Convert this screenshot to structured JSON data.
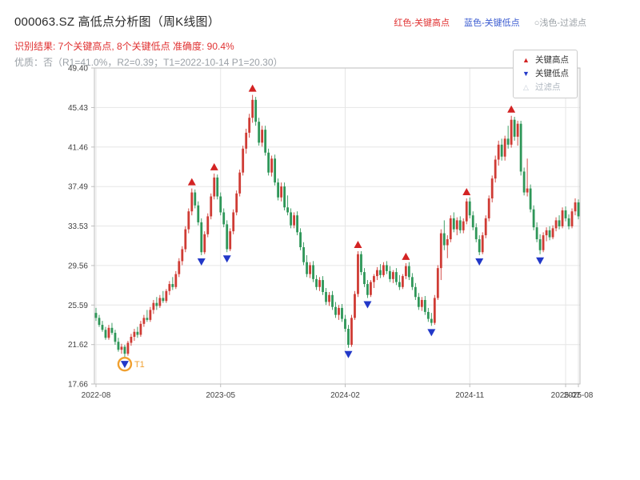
{
  "header": {
    "title": "000063.SZ 高低点分析图（周K线图）",
    "legend_top": {
      "high_label": "红色-关键高点",
      "low_label": "蓝色-关键低点",
      "filtered_label": "○浅色-过滤点"
    },
    "result_line": "识别结果: 7个关键高点, 8个关键低点  准确度: 90.4%",
    "quality_line": "优质：否（R1=41.0%，R2=0.39；T1=2022-10-14 P1=20.30）"
  },
  "legend_box": {
    "items": [
      {
        "label": "关键高点",
        "type": "key-high"
      },
      {
        "label": "关键低点",
        "type": "key-low"
      },
      {
        "label": "过滤点",
        "type": "filtered"
      }
    ]
  },
  "colors": {
    "up": "#cf3b34",
    "down": "#2e9658",
    "key_high": "#d32323",
    "key_low": "#2238c8",
    "filtered": "#c4ccd6",
    "t1": "#f0a030",
    "grid": "#e6e6e6",
    "frame": "#bdbdbd",
    "tick_text": "#444444"
  },
  "chart_data": {
    "type": "candlestick",
    "title": "000063.SZ 高低点分析图（周K线图）",
    "xlabel": "",
    "ylabel": "",
    "ylim": [
      17.66,
      49.4
    ],
    "grid": true,
    "y_ticks": [
      17.66,
      21.62,
      25.59,
      29.56,
      33.53,
      37.49,
      41.46,
      45.43,
      49.4
    ],
    "x_ticks": [
      {
        "index": 0,
        "label": "2022-08"
      },
      {
        "index": 39,
        "label": "2023-05"
      },
      {
        "index": 78,
        "label": "2024-02"
      },
      {
        "index": 117,
        "label": "2024-11"
      },
      {
        "index": 147,
        "label": "2025-07"
      },
      {
        "index": 151,
        "label": "2025-08"
      }
    ],
    "candles_format": [
      "open",
      "high",
      "low",
      "close"
    ],
    "candles": [
      [
        24.8,
        25.3,
        24.0,
        24.3
      ],
      [
        24.3,
        24.6,
        23.4,
        23.6
      ],
      [
        23.6,
        24.0,
        22.9,
        23.1
      ],
      [
        23.1,
        23.4,
        22.1,
        22.3
      ],
      [
        22.3,
        23.6,
        22.1,
        23.3
      ],
      [
        23.3,
        23.8,
        22.6,
        22.8
      ],
      [
        22.8,
        23.1,
        21.6,
        21.9
      ],
      [
        21.9,
        22.3,
        20.9,
        21.1
      ],
      [
        21.1,
        21.7,
        20.7,
        21.4
      ],
      [
        21.4,
        21.6,
        20.3,
        20.7
      ],
      [
        20.7,
        22.0,
        20.5,
        21.8
      ],
      [
        21.8,
        22.7,
        21.5,
        22.4
      ],
      [
        22.4,
        23.2,
        22.0,
        22.9
      ],
      [
        22.9,
        23.4,
        22.3,
        22.6
      ],
      [
        22.6,
        24.0,
        22.4,
        23.7
      ],
      [
        23.7,
        24.6,
        23.4,
        24.3
      ],
      [
        24.3,
        25.1,
        23.9,
        24.1
      ],
      [
        24.1,
        25.4,
        23.9,
        25.1
      ],
      [
        25.1,
        26.1,
        24.7,
        25.8
      ],
      [
        25.8,
        26.4,
        25.1,
        25.5
      ],
      [
        25.5,
        26.6,
        25.3,
        26.3
      ],
      [
        26.3,
        27.0,
        25.8,
        26.0
      ],
      [
        26.0,
        27.2,
        25.8,
        27.0
      ],
      [
        27.0,
        28.0,
        26.6,
        27.7
      ],
      [
        27.7,
        28.4,
        27.1,
        27.4
      ],
      [
        27.4,
        29.0,
        27.2,
        28.7
      ],
      [
        28.7,
        30.3,
        28.4,
        30.0
      ],
      [
        30.0,
        31.5,
        29.6,
        31.2
      ],
      [
        31.2,
        33.5,
        30.9,
        33.2
      ],
      [
        33.2,
        35.3,
        32.8,
        35.0
      ],
      [
        35.0,
        37.3,
        34.6,
        36.9
      ],
      [
        36.9,
        37.2,
        35.3,
        35.6
      ],
      [
        35.6,
        36.0,
        33.6,
        33.9
      ],
      [
        33.9,
        34.3,
        30.6,
        30.9
      ],
      [
        30.9,
        33.0,
        30.7,
        32.7
      ],
      [
        32.7,
        34.8,
        32.4,
        34.5
      ],
      [
        34.5,
        36.8,
        34.2,
        36.5
      ],
      [
        36.5,
        38.8,
        36.2,
        38.4
      ],
      [
        38.4,
        38.7,
        36.2,
        36.5
      ],
      [
        36.5,
        36.9,
        34.6,
        34.9
      ],
      [
        34.9,
        35.3,
        33.4,
        33.7
      ],
      [
        33.7,
        34.1,
        30.9,
        31.2
      ],
      [
        31.2,
        33.3,
        31.0,
        33.0
      ],
      [
        33.0,
        35.2,
        32.7,
        34.9
      ],
      [
        34.9,
        37.1,
        34.6,
        36.8
      ],
      [
        36.8,
        39.2,
        36.5,
        38.9
      ],
      [
        38.9,
        41.6,
        38.6,
        41.3
      ],
      [
        41.3,
        43.3,
        40.8,
        42.9
      ],
      [
        42.9,
        44.8,
        42.4,
        44.4
      ],
      [
        44.4,
        46.7,
        43.9,
        46.2
      ],
      [
        46.2,
        46.5,
        43.6,
        44.0
      ],
      [
        44.0,
        44.4,
        41.6,
        41.9
      ],
      [
        41.9,
        43.6,
        41.5,
        43.2
      ],
      [
        43.2,
        43.6,
        40.6,
        40.9
      ],
      [
        40.9,
        41.3,
        38.6,
        38.9
      ],
      [
        38.9,
        40.6,
        38.5,
        40.3
      ],
      [
        40.3,
        40.7,
        37.6,
        37.9
      ],
      [
        37.9,
        38.3,
        36.1,
        36.4
      ],
      [
        36.4,
        37.9,
        36.0,
        37.5
      ],
      [
        37.5,
        37.9,
        35.1,
        35.4
      ],
      [
        35.4,
        36.6,
        34.6,
        34.9
      ],
      [
        34.9,
        35.3,
        33.3,
        33.6
      ],
      [
        33.6,
        34.9,
        33.3,
        34.6
      ],
      [
        34.6,
        35.0,
        32.6,
        32.9
      ],
      [
        32.9,
        33.3,
        31.1,
        31.4
      ],
      [
        31.4,
        31.9,
        29.6,
        29.9
      ],
      [
        29.9,
        30.6,
        28.4,
        28.7
      ],
      [
        28.7,
        29.9,
        28.3,
        29.6
      ],
      [
        29.6,
        30.0,
        27.9,
        28.2
      ],
      [
        28.2,
        28.6,
        27.1,
        27.4
      ],
      [
        27.4,
        28.4,
        27.0,
        28.1
      ],
      [
        28.1,
        28.5,
        26.6,
        26.9
      ],
      [
        26.9,
        27.3,
        25.6,
        25.9
      ],
      [
        25.9,
        26.9,
        25.5,
        26.6
      ],
      [
        26.6,
        27.0,
        25.1,
        25.4
      ],
      [
        25.4,
        25.9,
        24.3,
        24.6
      ],
      [
        24.6,
        25.6,
        24.1,
        25.3
      ],
      [
        25.3,
        25.7,
        23.9,
        24.2
      ],
      [
        24.2,
        24.6,
        22.9,
        23.2
      ],
      [
        23.2,
        23.6,
        21.3,
        21.6
      ],
      [
        21.6,
        24.6,
        21.4,
        24.3
      ],
      [
        24.3,
        27.0,
        24.1,
        26.7
      ],
      [
        26.7,
        31.0,
        26.4,
        30.7
      ],
      [
        30.7,
        31.0,
        28.6,
        28.9
      ],
      [
        28.9,
        29.3,
        27.4,
        27.7
      ],
      [
        27.7,
        28.1,
        26.3,
        26.6
      ],
      [
        26.6,
        28.1,
        26.4,
        27.9
      ],
      [
        27.9,
        28.7,
        27.3,
        28.5
      ],
      [
        28.5,
        29.4,
        28.1,
        29.1
      ],
      [
        29.1,
        29.7,
        28.3,
        28.6
      ],
      [
        28.6,
        29.9,
        28.4,
        29.6
      ],
      [
        29.6,
        30.0,
        28.7,
        29.0
      ],
      [
        29.0,
        29.5,
        27.9,
        28.2
      ],
      [
        28.2,
        29.1,
        27.8,
        28.9
      ],
      [
        28.9,
        29.3,
        27.6,
        27.9
      ],
      [
        27.9,
        28.6,
        27.1,
        27.4
      ],
      [
        27.4,
        28.7,
        27.2,
        28.5
      ],
      [
        28.5,
        29.8,
        28.2,
        29.5
      ],
      [
        29.5,
        29.9,
        28.1,
        28.4
      ],
      [
        28.4,
        28.8,
        27.1,
        27.4
      ],
      [
        27.4,
        27.8,
        26.1,
        26.4
      ],
      [
        26.4,
        26.8,
        25.1,
        25.4
      ],
      [
        25.4,
        26.4,
        25.0,
        26.1
      ],
      [
        26.1,
        26.5,
        24.6,
        24.9
      ],
      [
        24.9,
        25.3,
        23.9,
        24.2
      ],
      [
        24.2,
        24.8,
        23.5,
        23.8
      ],
      [
        23.8,
        26.6,
        23.6,
        26.3
      ],
      [
        26.3,
        29.6,
        26.1,
        29.3
      ],
      [
        29.3,
        33.2,
        28.1,
        32.8
      ],
      [
        32.8,
        34.1,
        31.1,
        31.6
      ],
      [
        31.6,
        32.6,
        30.3,
        32.2
      ],
      [
        32.2,
        34.6,
        31.9,
        34.3
      ],
      [
        34.3,
        34.9,
        32.9,
        33.2
      ],
      [
        33.2,
        34.4,
        32.6,
        34.1
      ],
      [
        34.1,
        34.5,
        32.8,
        33.1
      ],
      [
        33.1,
        34.3,
        32.8,
        34.0
      ],
      [
        34.0,
        36.3,
        33.7,
        36.0
      ],
      [
        36.0,
        36.4,
        34.3,
        34.6
      ],
      [
        34.6,
        35.0,
        33.1,
        33.4
      ],
      [
        33.4,
        33.8,
        31.9,
        32.2
      ],
      [
        32.2,
        32.6,
        30.6,
        30.9
      ],
      [
        30.9,
        32.9,
        30.7,
        32.6
      ],
      [
        32.6,
        34.6,
        32.3,
        34.3
      ],
      [
        34.3,
        36.6,
        34.0,
        36.3
      ],
      [
        36.3,
        38.6,
        35.9,
        38.3
      ],
      [
        38.3,
        40.6,
        37.9,
        40.2
      ],
      [
        40.2,
        42.1,
        39.6,
        41.7
      ],
      [
        41.7,
        42.3,
        40.1,
        40.5
      ],
      [
        40.5,
        42.6,
        40.1,
        42.3
      ],
      [
        42.3,
        43.6,
        41.3,
        41.7
      ],
      [
        41.7,
        44.6,
        41.4,
        44.2
      ],
      [
        44.2,
        44.5,
        42.1,
        42.5
      ],
      [
        42.5,
        44.1,
        41.6,
        43.8
      ],
      [
        43.8,
        44.1,
        38.6,
        39.0
      ],
      [
        39.0,
        39.4,
        36.6,
        36.9
      ],
      [
        36.9,
        40.3,
        36.5,
        37.3
      ],
      [
        37.3,
        37.7,
        34.9,
        35.2
      ],
      [
        35.2,
        35.6,
        33.1,
        33.4
      ],
      [
        33.4,
        33.9,
        31.9,
        32.2
      ],
      [
        32.2,
        32.7,
        30.7,
        31.1
      ],
      [
        31.1,
        32.9,
        30.9,
        32.6
      ],
      [
        32.6,
        33.4,
        32.0,
        33.1
      ],
      [
        33.1,
        33.5,
        32.1,
        32.4
      ],
      [
        32.4,
        33.6,
        32.2,
        33.3
      ],
      [
        33.3,
        34.4,
        33.0,
        34.1
      ],
      [
        34.1,
        34.6,
        33.2,
        33.5
      ],
      [
        33.5,
        35.4,
        33.3,
        35.1
      ],
      [
        35.1,
        35.5,
        34.0,
        34.3
      ],
      [
        34.3,
        34.7,
        33.2,
        33.5
      ],
      [
        33.5,
        35.3,
        33.3,
        35.0
      ],
      [
        35.0,
        36.3,
        34.6,
        35.9
      ],
      [
        35.9,
        36.2,
        34.2,
        34.5
      ]
    ],
    "key_highs": [
      {
        "index": 30,
        "price": 37.3
      },
      {
        "index": 37,
        "price": 38.8
      },
      {
        "index": 49,
        "price": 46.7
      },
      {
        "index": 82,
        "price": 31.0
      },
      {
        "index": 97,
        "price": 29.8
      },
      {
        "index": 116,
        "price": 36.3
      },
      {
        "index": 130,
        "price": 44.6
      }
    ],
    "key_lows": [
      {
        "index": 9,
        "price": 20.3,
        "annotation": "T1"
      },
      {
        "index": 33,
        "price": 30.6
      },
      {
        "index": 41,
        "price": 30.9
      },
      {
        "index": 79,
        "price": 21.3
      },
      {
        "index": 85,
        "price": 26.3
      },
      {
        "index": 105,
        "price": 23.5
      },
      {
        "index": 120,
        "price": 30.6
      },
      {
        "index": 139,
        "price": 30.7
      }
    ]
  }
}
